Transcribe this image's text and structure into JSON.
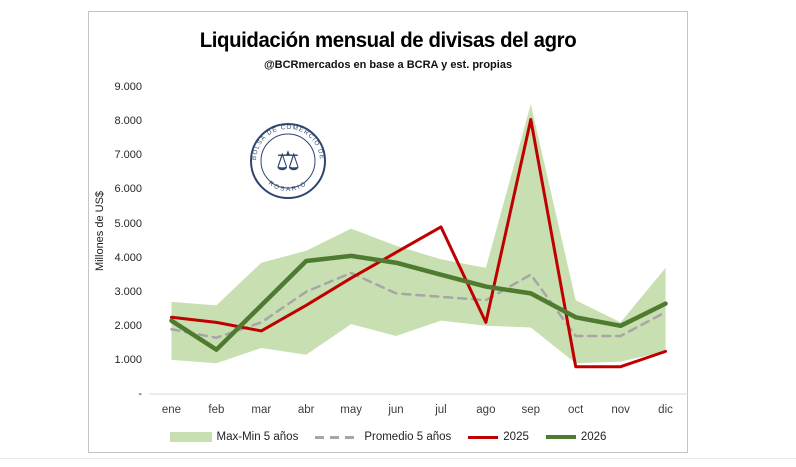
{
  "chart": {
    "title": "Liquidación mensual de divisas del agro",
    "subtitle": "@BCRmercados en base a BCRA y est. propias",
    "y_axis_title": "Millones de US$",
    "watermark": {
      "line1": "BOLSA DE COMERCIO DE",
      "line2": "ROSARIO",
      "emblem": "⚖",
      "color": "#1f3864"
    }
  },
  "chart_data": {
    "type": "line",
    "subtype": "lines with max-min area band",
    "title": "Liquidación mensual de divisas del agro",
    "xlabel": "",
    "ylabel": "Millones de US$",
    "ylim": [
      0,
      9350
    ],
    "grid": false,
    "legend_position": "bottom",
    "categories": [
      "ene",
      "feb",
      "mar",
      "abr",
      "may",
      "jun",
      "jul",
      "ago",
      "sep",
      "oct",
      "nov",
      "dic"
    ],
    "y_ticks": [
      {
        "label": "9.000",
        "value": 9000
      },
      {
        "label": "8.000",
        "value": 8000
      },
      {
        "label": "7.000",
        "value": 7000
      },
      {
        "label": "6.000",
        "value": 6000
      },
      {
        "label": "5.000",
        "value": 5000
      },
      {
        "label": "4.000",
        "value": 4000
      },
      {
        "label": "3.000",
        "value": 3000
      },
      {
        "label": "2.000",
        "value": 2000
      },
      {
        "label": "1.000",
        "value": 1000
      },
      {
        "label": "-",
        "value": 0
      }
    ],
    "series": [
      {
        "name": "Max-Min 5 años",
        "type": "band",
        "color": "#c8dfb2",
        "max": [
          2700,
          2600,
          3850,
          4200,
          4850,
          4350,
          3950,
          3700,
          8500,
          2750,
          2100,
          3700
        ],
        "min": [
          1000,
          900,
          1350,
          1150,
          2050,
          1700,
          2150,
          2000,
          1950,
          900,
          950,
          1250
        ]
      },
      {
        "name": "Promedio 5 años",
        "type": "line",
        "style": "dashed",
        "color": "#a6a6a6",
        "width": 2.5,
        "values": [
          1900,
          1650,
          2100,
          3000,
          3550,
          2950,
          2850,
          2750,
          3500,
          1700,
          1700,
          2400
        ]
      },
      {
        "name": "2025",
        "type": "line",
        "style": "solid",
        "color": "#c00000",
        "width": 3,
        "values": [
          2250,
          2100,
          1850,
          2600,
          3400,
          4150,
          4900,
          2100,
          8050,
          800,
          800,
          1250
        ]
      },
      {
        "name": "2026",
        "type": "line",
        "style": "solid",
        "color": "#4e7b30",
        "width": 4.5,
        "values": [
          2150,
          1300,
          2600,
          3900,
          4050,
          3850,
          3500,
          3150,
          2950,
          2250,
          2000,
          2650
        ]
      }
    ],
    "axis_line_color": "#d9d9d9"
  }
}
